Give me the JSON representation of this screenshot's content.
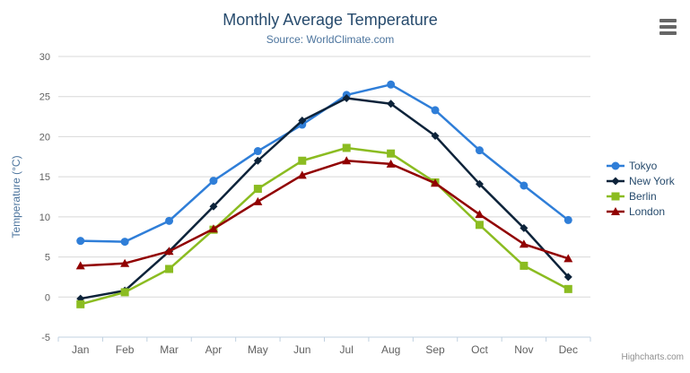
{
  "chart": {
    "title": "Monthly Average Temperature",
    "subtitle": "Source: WorldClimate.com",
    "credits": "Highcharts.com",
    "export_menu_icon": "hamburger-icon"
  },
  "chart_data": {
    "type": "line",
    "title": "Monthly Average Temperature",
    "subtitle": "Source: WorldClimate.com",
    "categories": [
      "Jan",
      "Feb",
      "Mar",
      "Apr",
      "May",
      "Jun",
      "Jul",
      "Aug",
      "Sep",
      "Oct",
      "Nov",
      "Dec"
    ],
    "xlabel": "",
    "ylabel": "Temperature (°C)",
    "ylim": [
      -5,
      30
    ],
    "ytick_step": 5,
    "grid": "horizontal",
    "legend_position": "right",
    "series": [
      {
        "name": "Tokyo",
        "marker": "circle",
        "color": "#2f7ed8",
        "values": [
          7.0,
          6.9,
          9.5,
          14.5,
          18.2,
          21.5,
          25.2,
          26.5,
          23.3,
          18.3,
          13.9,
          9.6
        ]
      },
      {
        "name": "New York",
        "marker": "diamond",
        "color": "#0d233a",
        "values": [
          -0.2,
          0.8,
          5.7,
          11.3,
          17.0,
          22.0,
          24.8,
          24.1,
          20.1,
          14.1,
          8.6,
          2.5
        ]
      },
      {
        "name": "Berlin",
        "marker": "square",
        "color": "#8bbc21",
        "values": [
          -0.9,
          0.6,
          3.5,
          8.4,
          13.5,
          17.0,
          18.6,
          17.9,
          14.3,
          9.0,
          3.9,
          1.0
        ]
      },
      {
        "name": "London",
        "marker": "triangle",
        "color": "#910000",
        "values": [
          3.9,
          4.2,
          5.7,
          8.5,
          11.9,
          15.2,
          17.0,
          16.6,
          14.2,
          10.3,
          6.6,
          4.8
        ]
      }
    ]
  },
  "colors": {
    "title": "#274b6d",
    "subtitle": "#4d759e",
    "axis_label": "#606060",
    "axis_title": "#4d759e",
    "axis_line": "#c0d0e0",
    "gridline": "#d8d8d8",
    "legend_text": "#274b6d",
    "credits": "#909090"
  }
}
